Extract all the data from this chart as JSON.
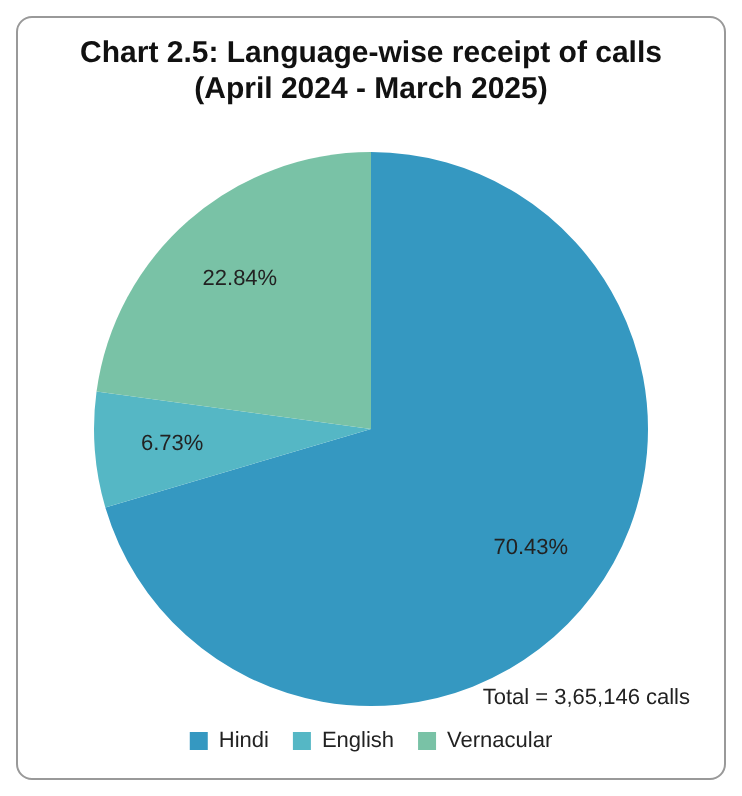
{
  "chart_data": {
    "type": "pie",
    "title": "Chart 2.5: Language-wise receipt of calls\n(April 2024 - March 2025)",
    "categories": [
      "Hindi",
      "English",
      "Vernacular"
    ],
    "values": [
      70.43,
      6.73,
      22.84
    ],
    "colors": [
      "#3598c1",
      "#55b7c5",
      "#79c2a6"
    ],
    "value_labels": [
      "70.43%",
      "6.73%",
      "22.84%"
    ],
    "annotations": [
      "Total = 3,65,146 calls"
    ],
    "legend": "bottom"
  }
}
